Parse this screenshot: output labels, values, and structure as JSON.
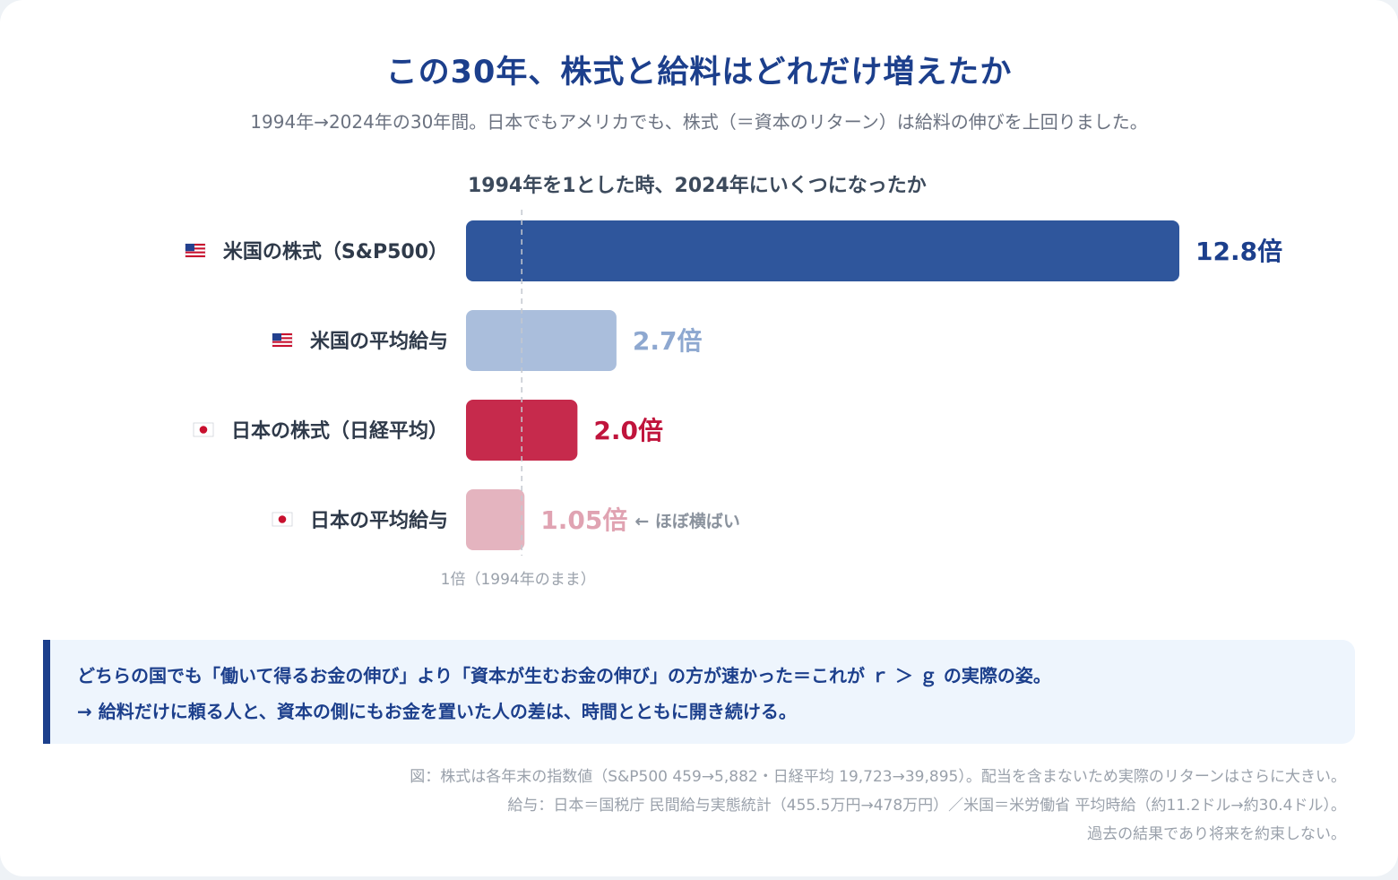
{
  "header": {
    "title": "この30年、株式と給料はどれだけ増えたか",
    "subtitle": "1994年→2024年の30年間。日本でもアメリカでも、株式（＝資本のリターン）は給料の伸びを上回りました。"
  },
  "chart_data": {
    "type": "bar",
    "orientation": "horizontal",
    "title": "1994年を1とした時、2024年にいくつになったか",
    "baseline_value": 1,
    "baseline_label": "1倍（1994年のまま）",
    "xlim": [
      0,
      12.8
    ],
    "grid": false,
    "categories": [
      {
        "flag": "us-flag-icon",
        "label": "米国の株式（S&P500）"
      },
      {
        "flag": "us-flag-icon",
        "label": "米国の平均給与"
      },
      {
        "flag": "jp-flag-icon",
        "label": "日本の株式（日経平均）"
      },
      {
        "flag": "jp-flag-icon",
        "label": "日本の平均給与"
      }
    ],
    "values": [
      12.8,
      2.7,
      2.0,
      1.05
    ],
    "value_labels": [
      "12.8倍",
      "2.7倍",
      "2.0倍",
      "1.05倍"
    ],
    "annotations": [
      "",
      "",
      "",
      "← ほぼ横ばい"
    ],
    "colors": [
      "#2f569c",
      "#aabedc",
      "#c62a4c",
      "#e4b4bf"
    ],
    "label_colors": [
      "#1c3f8c",
      "#8ea8d0",
      "#c0143c",
      "#e0a3b2"
    ]
  },
  "note": {
    "line1": "どちらの国でも「働いて得るお金の伸び」より「資本が生むお金の伸び」の方が速かった＝これが ｒ ＞ ｇ の実際の姿。",
    "line2": "→ 給料だけに頼る人と、資本の側にもお金を置いた人の差は、時間とともに開き続ける。"
  },
  "footnotes": [
    "図：株式は各年末の指数値（S&P500 459→5,882・日経平均 19,723→39,895）。配当を含まないため実際のリターンはさらに大きい。",
    "給与：日本＝国税庁 民間給与実態統計（455.5万円→478万円）／米国＝米労働省 平均時給（約11.2ドル→約30.4ドル）。",
    "過去の結果であり将来を約束しない。"
  ]
}
